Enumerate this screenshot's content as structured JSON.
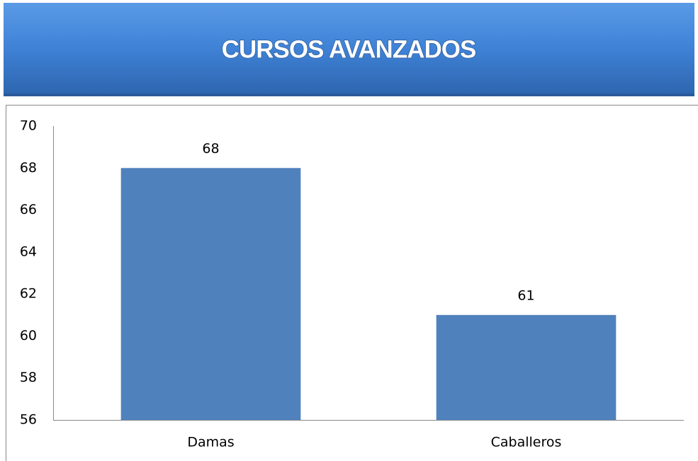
{
  "chart_data": {
    "type": "bar",
    "title": "CURSOS AVANZADOS",
    "categories": [
      "Damas",
      "Caballeros"
    ],
    "values": [
      68,
      61
    ],
    "color": "#4f81bd",
    "ylim": [
      56,
      70
    ],
    "yticks": [
      56,
      58,
      60,
      62,
      64,
      66,
      68,
      70
    ],
    "grid": false
  }
}
